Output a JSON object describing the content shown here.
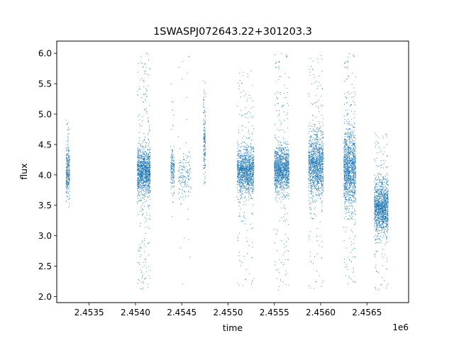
{
  "chart_data": {
    "type": "scatter",
    "title": "1SWASPJ072643.22+301203.3",
    "xlabel": "time",
    "ylabel": "flux",
    "x_offset_label": "1e6",
    "xlim": [
      2453150,
      2456950
    ],
    "ylim": [
      1.9,
      6.2
    ],
    "xticks": [
      2453500,
      2454000,
      2454500,
      2455000,
      2455500,
      2456000,
      2456500
    ],
    "xtick_labels": [
      "2.4535",
      "2.4540",
      "2.4545",
      "2.4550",
      "2.4555",
      "2.4560",
      "2.4565"
    ],
    "yticks": [
      2.0,
      2.5,
      3.0,
      3.5,
      4.0,
      4.5,
      5.0,
      5.5,
      6.0
    ],
    "ytick_labels": [
      "2.0",
      "2.5",
      "3.0",
      "3.5",
      "4.0",
      "4.5",
      "5.0",
      "5.5",
      "6.0"
    ],
    "grid": false,
    "marker_color": "#1f77b4",
    "series": [
      {
        "values": [
          {
            "t_start": 2453250,
            "t_end": 2453290,
            "flux_center": 4.05,
            "core_low": 3.75,
            "core_high": 4.45,
            "min": 3.45,
            "max": 4.9,
            "density": "medium"
          },
          {
            "t_start": 2454020,
            "t_end": 2454160,
            "flux_center": 4.05,
            "core_low": 3.7,
            "core_high": 4.4,
            "min": 2.1,
            "max": 6.0,
            "density": "high"
          },
          {
            "t_start": 2454380,
            "t_end": 2454420,
            "flux_center": 4.1,
            "core_low": 3.8,
            "core_high": 4.4,
            "min": 3.2,
            "max": 5.6,
            "density": "low"
          },
          {
            "t_start": 2454460,
            "t_end": 2454600,
            "flux_center": 4.0,
            "core_low": 3.6,
            "core_high": 4.4,
            "min": 2.15,
            "max": 6.0,
            "density": "low"
          },
          {
            "t_start": 2454735,
            "t_end": 2454755,
            "flux_center": 4.6,
            "core_low": 4.0,
            "core_high": 5.2,
            "min": 3.85,
            "max": 5.55,
            "density": "low"
          },
          {
            "t_start": 2455100,
            "t_end": 2455280,
            "flux_center": 4.05,
            "core_low": 3.75,
            "core_high": 4.4,
            "min": 2.15,
            "max": 5.75,
            "density": "high"
          },
          {
            "t_start": 2455500,
            "t_end": 2455660,
            "flux_center": 4.1,
            "core_low": 3.8,
            "core_high": 4.45,
            "min": 2.1,
            "max": 6.0,
            "density": "high"
          },
          {
            "t_start": 2455870,
            "t_end": 2456030,
            "flux_center": 4.15,
            "core_low": 3.7,
            "core_high": 4.6,
            "min": 2.1,
            "max": 6.0,
            "density": "high"
          },
          {
            "t_start": 2456250,
            "t_end": 2456380,
            "flux_center": 4.1,
            "core_low": 3.5,
            "core_high": 4.6,
            "min": 2.15,
            "max": 6.0,
            "density": "high"
          },
          {
            "t_start": 2456580,
            "t_end": 2456730,
            "flux_center": 3.45,
            "core_low": 3.1,
            "core_high": 3.85,
            "min": 2.1,
            "max": 4.7,
            "density": "high"
          }
        ]
      }
    ]
  }
}
